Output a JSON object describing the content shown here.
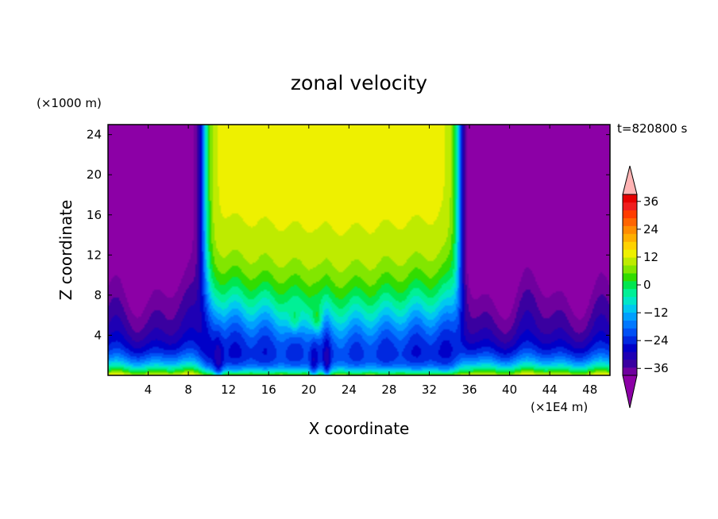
{
  "chart_data": {
    "type": "heatmap",
    "title": "zonal velocity",
    "xlabel": "X coordinate",
    "ylabel": "Z coordinate",
    "x_unit": "(×1E4 m)",
    "y_unit": "(×1000 m)",
    "time_label": "t=820800 s",
    "xlim": [
      0,
      50
    ],
    "ylim": [
      0,
      25
    ],
    "x_ticks": [
      4,
      8,
      12,
      16,
      20,
      24,
      28,
      32,
      36,
      40,
      44,
      48
    ],
    "y_ticks": [
      4,
      8,
      12,
      16,
      20,
      24
    ],
    "x_tick_labels": [
      "4",
      "8",
      "12",
      "16",
      "20",
      "24",
      "28",
      "32",
      "36",
      "40",
      "44",
      "48"
    ],
    "y_tick_labels": [
      "4",
      "8",
      "12",
      "16",
      "20",
      "24"
    ],
    "colorbar": {
      "levels": [
        -42,
        -39,
        -36,
        -33,
        -30,
        -27,
        -24,
        -21,
        -18,
        -15,
        -12,
        -9,
        -6,
        -3,
        0,
        3,
        6,
        9,
        12,
        15,
        18,
        21,
        24,
        27,
        30,
        33,
        36,
        39,
        42
      ],
      "tick_values": [
        -36,
        -24,
        -12,
        0,
        12,
        24,
        36
      ],
      "tick_labels": [
        "−36",
        "−24",
        "−12",
        "0",
        "12",
        "24",
        "36"
      ],
      "colors": [
        "#8c00a6",
        "#6f009e",
        "#3a00a0",
        "#1e00b4",
        "#0000c8",
        "#0028e0",
        "#0050f5",
        "#0078ff",
        "#00a0ff",
        "#00c8f0",
        "#00e6c8",
        "#00f096",
        "#00e650",
        "#32dc00",
        "#82e600",
        "#beeb00",
        "#eef000",
        "#ffd200",
        "#ffaf00",
        "#ff8c00",
        "#ff6400",
        "#ff3c00",
        "#f01e1e",
        "#e60000",
        "#ffb4b4"
      ]
    }
  }
}
